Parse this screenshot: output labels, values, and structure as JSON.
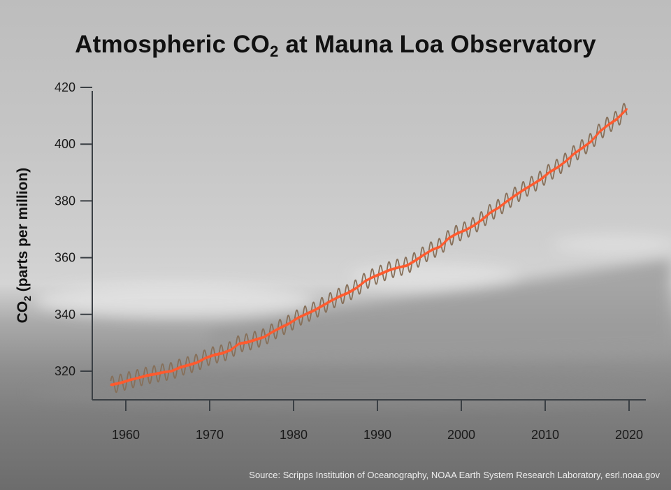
{
  "chart_data": {
    "type": "line",
    "title_prefix": "Atmospheric CO",
    "title_sub": "2",
    "title_suffix": " at Mauna Loa Observatory",
    "ylabel_prefix": "CO",
    "ylabel_sub": "2",
    "ylabel_suffix": " (parts per million)",
    "xlabel": "",
    "xlim": [
      1956,
      2022
    ],
    "ylim": [
      310,
      420
    ],
    "xticks": [
      1960,
      1970,
      1980,
      1990,
      2000,
      2010,
      2020
    ],
    "yticks": [
      320,
      340,
      360,
      380,
      400,
      420
    ],
    "grid": false,
    "seasonal_amplitude_ppm": 3,
    "series": [
      {
        "key": "trend",
        "color": "#ff5a2e",
        "style": "smoothed annual trend"
      },
      {
        "key": "monthly",
        "color": "#86705a",
        "style": "monthly with seasonal cycle"
      }
    ],
    "years": [
      1958,
      1959,
      1960,
      1961,
      1962,
      1963,
      1964,
      1965,
      1966,
      1967,
      1968,
      1969,
      1970,
      1971,
      1972,
      1973,
      1974,
      1975,
      1976,
      1977,
      1978,
      1979,
      1980,
      1981,
      1982,
      1983,
      1984,
      1985,
      1986,
      1987,
      1988,
      1989,
      1990,
      1991,
      1992,
      1993,
      1994,
      1995,
      1996,
      1997,
      1998,
      1999,
      2000,
      2001,
      2002,
      2003,
      2004,
      2005,
      2006,
      2007,
      2008,
      2009,
      2010,
      2011,
      2012,
      2013,
      2014,
      2015,
      2016,
      2017,
      2018,
      2019
    ],
    "annual_mean_ppm": [
      315.3,
      315.97,
      316.91,
      317.64,
      318.45,
      318.99,
      319.62,
      320.04,
      321.37,
      322.18,
      323.05,
      324.62,
      325.68,
      326.32,
      327.46,
      329.68,
      330.19,
      331.12,
      332.03,
      333.84,
      335.41,
      336.84,
      338.76,
      340.12,
      341.48,
      343.15,
      344.85,
      346.35,
      347.61,
      349.31,
      351.69,
      353.2,
      354.45,
      355.7,
      356.54,
      357.21,
      358.96,
      360.97,
      362.74,
      363.88,
      366.84,
      368.54,
      369.71,
      371.32,
      373.45,
      375.98,
      377.7,
      379.98,
      382.09,
      384.02,
      385.83,
      387.64,
      390.1,
      391.85,
      394.06,
      396.74,
      398.81,
      401.01,
      404.41,
      406.76,
      408.72,
      411.66
    ]
  },
  "source": "Source: Scripps Institution of Oceanography, NOAA Earth System Research Laboratory, esrl.noaa.gov"
}
